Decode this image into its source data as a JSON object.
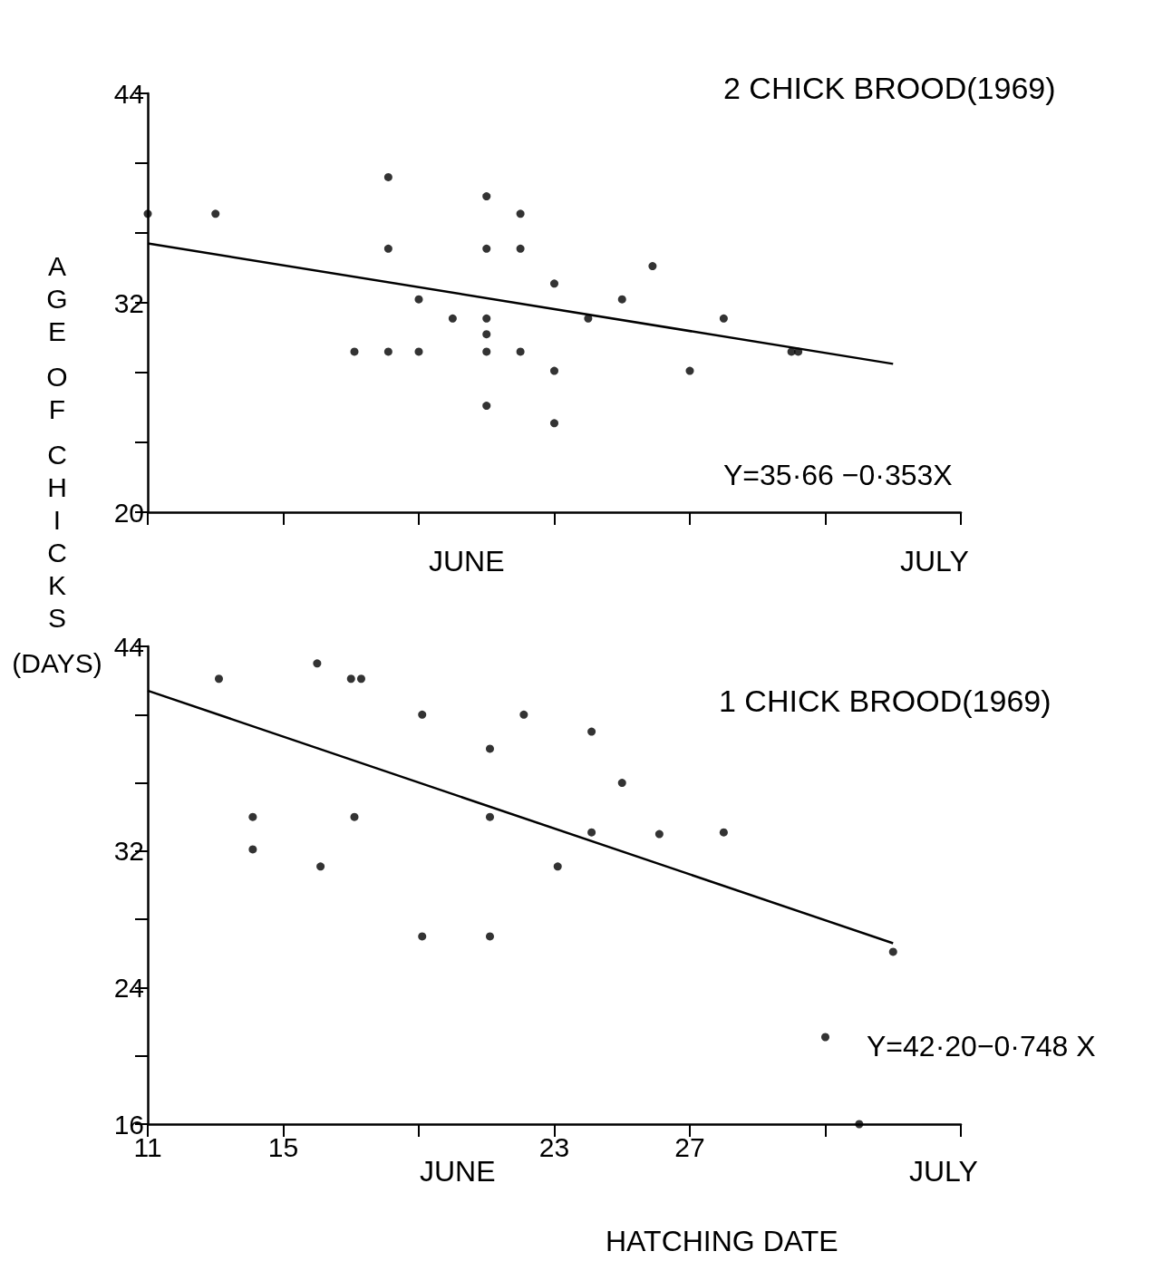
{
  "chart_data": [
    {
      "type": "scatter",
      "title": "2 CHICK BROOD(1969)",
      "ylabel": "AGE OF CHICKS (DAYS)",
      "annotations": [
        "Y=35·66 −0·353X",
        "JUNE",
        "JULY"
      ],
      "xlim": [
        11,
        35
      ],
      "xticks": [
        {
          "value": 11,
          "label": null
        },
        {
          "value": 15,
          "label": null
        },
        {
          "value": 19,
          "label": null
        },
        {
          "value": 23,
          "label": null
        },
        {
          "value": 27,
          "label": null
        },
        {
          "value": 31,
          "label": null
        },
        {
          "value": 35,
          "label": null
        }
      ],
      "ylim": [
        20,
        44
      ],
      "yticks": [
        20,
        {
          "value": 24,
          "label": null
        },
        {
          "value": 28,
          "label": null
        },
        32,
        {
          "value": 36,
          "label": null
        },
        {
          "value": 40,
          "label": null
        },
        44
      ],
      "tick_labels": "y",
      "grid": false,
      "marker": "circle",
      "series": [
        {
          "color": "#000000",
          "x": [
            11,
            13,
            17.1,
            18.1,
            18.1,
            18.1,
            19,
            19,
            20,
            21,
            21,
            21,
            21,
            21,
            21,
            22,
            22,
            22,
            23,
            23,
            23,
            24,
            25,
            25.9,
            27,
            28,
            30,
            30.2
          ],
          "values": [
            37.1,
            37.1,
            29.2,
            39.2,
            35.1,
            29.2,
            32.2,
            29.2,
            31.1,
            38.1,
            35.1,
            31.1,
            30.2,
            29.2,
            26.1,
            37.1,
            35.1,
            29.2,
            33.1,
            28.1,
            25.1,
            31.1,
            32.2,
            34.1,
            28.1,
            31.1,
            29.2,
            29.2
          ]
        },
        {
          "type": "line",
          "color": "#000000",
          "marker": "none",
          "line_style": "solid",
          "x": [
            11,
            33
          ],
          "values": [
            35.4,
            28.5
          ]
        }
      ]
    },
    {
      "type": "scatter",
      "title": "1 CHICK BROOD(1969)",
      "xlabel": "HATCHING DATE",
      "annotations": [
        "Y=42·20−0·748 X",
        "JUNE",
        "JULY"
      ],
      "xlim": [
        11,
        35
      ],
      "xticks": [
        11,
        15,
        {
          "value": 19,
          "label": null
        },
        23,
        27,
        {
          "value": 31,
          "label": null
        },
        {
          "value": 35,
          "label": null
        }
      ],
      "ylim": [
        16,
        44
      ],
      "yticks": [
        16,
        {
          "value": 20,
          "label": null
        },
        24,
        {
          "value": 28,
          "label": null
        },
        32,
        {
          "value": 36,
          "label": null
        },
        {
          "value": 40,
          "label": null
        },
        44
      ],
      "grid": false,
      "marker": "circle",
      "series": [
        {
          "color": "#000000",
          "x": [
            13.1,
            14.1,
            14.1,
            16,
            16.1,
            17,
            17.3,
            17.1,
            19.1,
            19.1,
            21.1,
            21.1,
            21.1,
            22.1,
            23.1,
            24.1,
            24.1,
            25,
            26.1,
            28,
            31,
            32,
            33
          ],
          "values": [
            42.1,
            34,
            32.1,
            43,
            31.1,
            42.1,
            42.1,
            34,
            40,
            27,
            38,
            34,
            27,
            40,
            31.1,
            39,
            33.1,
            36,
            33,
            33.1,
            21.1,
            16,
            26.1
          ]
        },
        {
          "type": "line",
          "color": "#000000",
          "marker": "none",
          "line_style": "solid",
          "x": [
            11,
            33
          ],
          "values": [
            41.4,
            26.6
          ]
        }
      ]
    }
  ]
}
